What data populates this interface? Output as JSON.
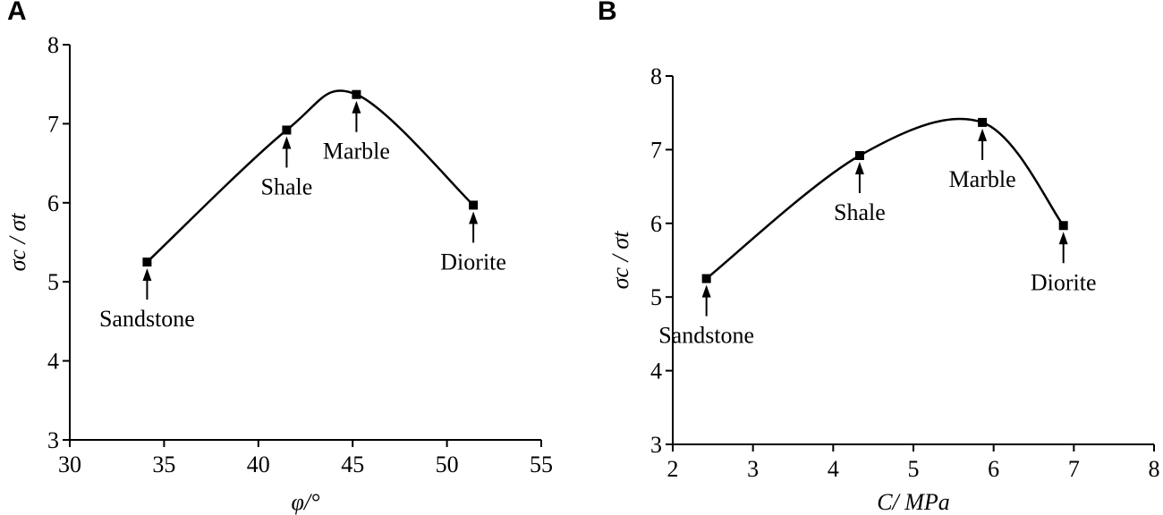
{
  "chart_data": [
    {
      "type": "line",
      "panel": "A",
      "xlabel": "φ/°",
      "ylabel": "σc / σt",
      "x": [
        34.1,
        41.5,
        45.2,
        51.4
      ],
      "series": [
        {
          "color": "#000000",
          "values": [
            5.25,
            6.92,
            7.37,
            5.97
          ],
          "labels": [
            "Sandstone",
            "Shale",
            "Marble",
            "Diorite"
          ]
        }
      ],
      "xlim": [
        30,
        55
      ],
      "xticks": [
        30,
        35,
        40,
        45,
        50,
        55
      ],
      "ylim": [
        3,
        8
      ],
      "yticks": [
        3,
        4,
        5,
        6,
        7,
        8
      ]
    },
    {
      "type": "line",
      "panel": "B",
      "xlabel": "C/ MPa",
      "ylabel": "σc / σt",
      "x": [
        2.42,
        4.33,
        5.86,
        6.87
      ],
      "series": [
        {
          "color": "#000000",
          "values": [
            5.25,
            6.92,
            7.37,
            5.97
          ],
          "labels": [
            "Sandstone",
            "Shale",
            "Marble",
            "Diorite"
          ]
        }
      ],
      "xlim": [
        2,
        8
      ],
      "xticks": [
        2,
        3,
        4,
        5,
        6,
        7,
        8
      ],
      "ylim": [
        3,
        8
      ],
      "yticks": [
        3,
        4,
        5,
        6,
        7,
        8
      ]
    }
  ]
}
